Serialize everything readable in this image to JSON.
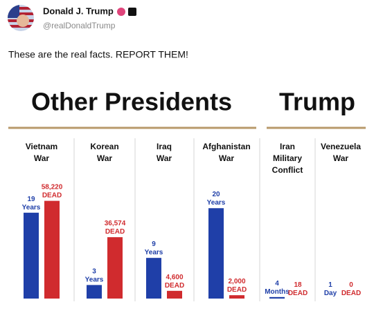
{
  "author": {
    "name": "Donald J. Trump",
    "handle": "@realDonaldTrump"
  },
  "post_text": "These are the real facts. REPORT THEM!",
  "chart_data": {
    "type": "bar",
    "group_titles": [
      "Other Presidents",
      "Trump"
    ],
    "categories": [
      "Vietnam War",
      "Korean War",
      "Iraq War",
      "Afghanistan War",
      "Iran Military Conflict",
      "Venezuela War"
    ],
    "series": [
      {
        "color": "#1f3fa8",
        "ylim": [
          0,
          26
        ],
        "values": [
          19,
          3,
          9,
          20,
          0.333,
          0.00274
        ],
        "value_labels": [
          "19 Years",
          "3 Years",
          "9 Years",
          "20 Years",
          "4 Months",
          "1 Day"
        ]
      },
      {
        "color": "#d02b2e",
        "ylim": [
          0,
          70000
        ],
        "values": [
          58220,
          36574,
          4600,
          2000,
          18,
          0
        ],
        "value_labels": [
          "58,220 DEAD",
          "36,574 DEAD",
          "4,600 DEAD",
          "2,000 DEAD",
          "18 DEAD",
          "0 DEAD"
        ]
      }
    ]
  }
}
